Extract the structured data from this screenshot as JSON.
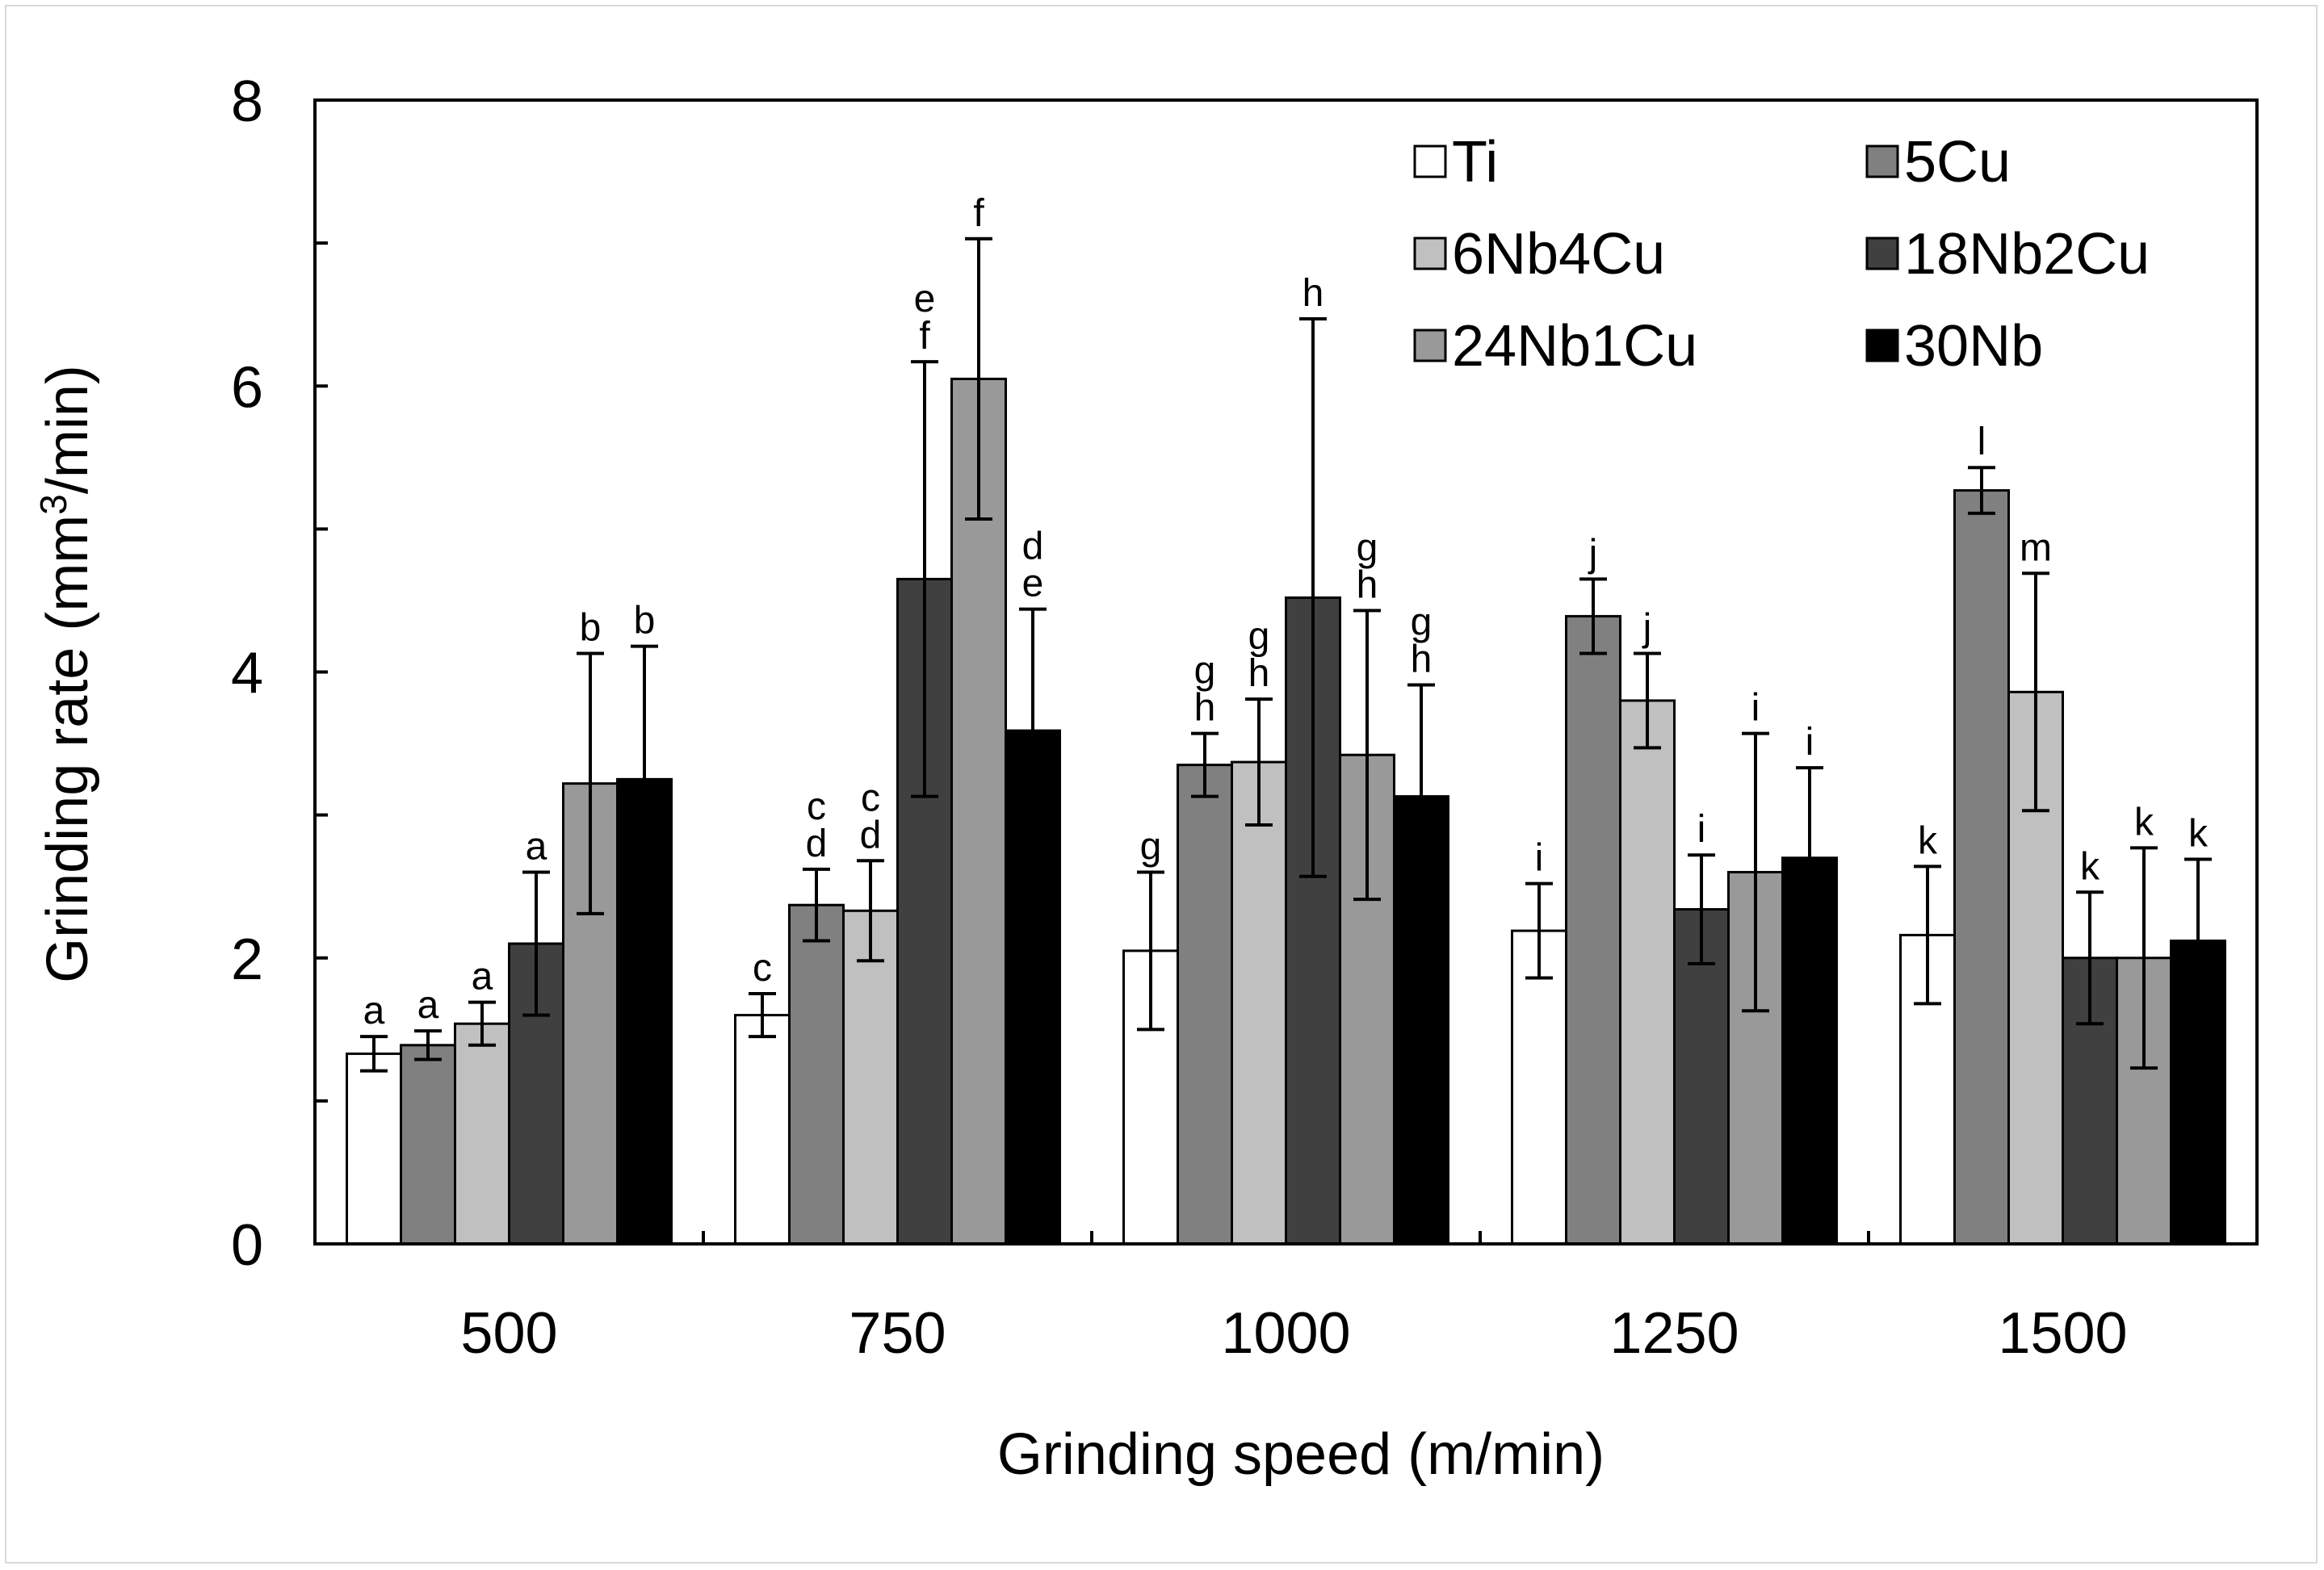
{
  "chart_data": {
    "type": "bar",
    "title": "",
    "xlabel": "Grinding speed (m/min)",
    "ylabel_prefix": "Grinding rate (mm",
    "ylabel_sup": "3",
    "ylabel_suffix": "/min)",
    "ylim": [
      0,
      8
    ],
    "y_ticks": [
      0,
      2,
      4,
      6,
      8
    ],
    "y_tick_labels": [
      "0",
      "2",
      "4",
      "6",
      "8"
    ],
    "categories": [
      "500",
      "750",
      "1000",
      "1250",
      "1500"
    ],
    "legend_position": "top-right",
    "series": [
      {
        "name": "Ti",
        "color": "#ffffff",
        "values": [
          1.33,
          1.6,
          2.05,
          2.19,
          2.16
        ],
        "errors": [
          0.12,
          0.15,
          0.55,
          0.33,
          0.48
        ],
        "letters": [
          [
            "a"
          ],
          [
            "c"
          ],
          [
            "g"
          ],
          [
            "i"
          ],
          [
            "k"
          ]
        ]
      },
      {
        "name": "5Cu",
        "color": "#808080",
        "values": [
          1.39,
          2.37,
          3.35,
          4.39,
          5.27
        ],
        "errors": [
          0.1,
          0.25,
          0.22,
          0.26,
          0.16
        ],
        "letters": [
          [
            "a"
          ],
          [
            "c",
            "d"
          ],
          [
            "g",
            "h"
          ],
          [
            "j"
          ],
          [
            "l"
          ]
        ]
      },
      {
        "name": "6Nb4Cu",
        "color": "#c0c0c0",
        "values": [
          1.54,
          2.33,
          3.37,
          3.8,
          3.86
        ],
        "errors": [
          0.15,
          0.35,
          0.44,
          0.33,
          0.83
        ],
        "letters": [
          [
            "a"
          ],
          [
            "c",
            "d"
          ],
          [
            "g",
            "h"
          ],
          [
            "j"
          ],
          [
            "m"
          ]
        ]
      },
      {
        "name": "18Nb2Cu",
        "color": "#404040",
        "values": [
          2.1,
          4.65,
          4.52,
          2.34,
          2.0
        ],
        "errors": [
          0.5,
          1.52,
          1.95,
          0.38,
          0.46
        ],
        "letters": [
          [
            "a"
          ],
          [
            "e",
            "f"
          ],
          [
            "h"
          ],
          [
            "i"
          ],
          [
            "k"
          ]
        ]
      },
      {
        "name": "24Nb1Cu",
        "color": "#999999",
        "values": [
          3.22,
          6.05,
          3.42,
          2.6,
          2.0
        ],
        "errors": [
          0.91,
          0.98,
          1.01,
          0.97,
          0.77
        ],
        "letters": [
          [
            "b"
          ],
          [
            "f"
          ],
          [
            "g",
            "h"
          ],
          [
            "i"
          ],
          [
            "k"
          ]
        ]
      },
      {
        "name": "30Nb",
        "color": "#000000",
        "values": [
          3.25,
          3.59,
          3.13,
          2.7,
          2.12
        ],
        "errors": [
          0.93,
          0.85,
          0.78,
          0.63,
          0.57
        ],
        "letters": [
          [
            "b"
          ],
          [
            "d",
            "e"
          ],
          [
            "g",
            "h"
          ],
          [
            "i"
          ],
          [
            "k"
          ]
        ]
      }
    ]
  }
}
